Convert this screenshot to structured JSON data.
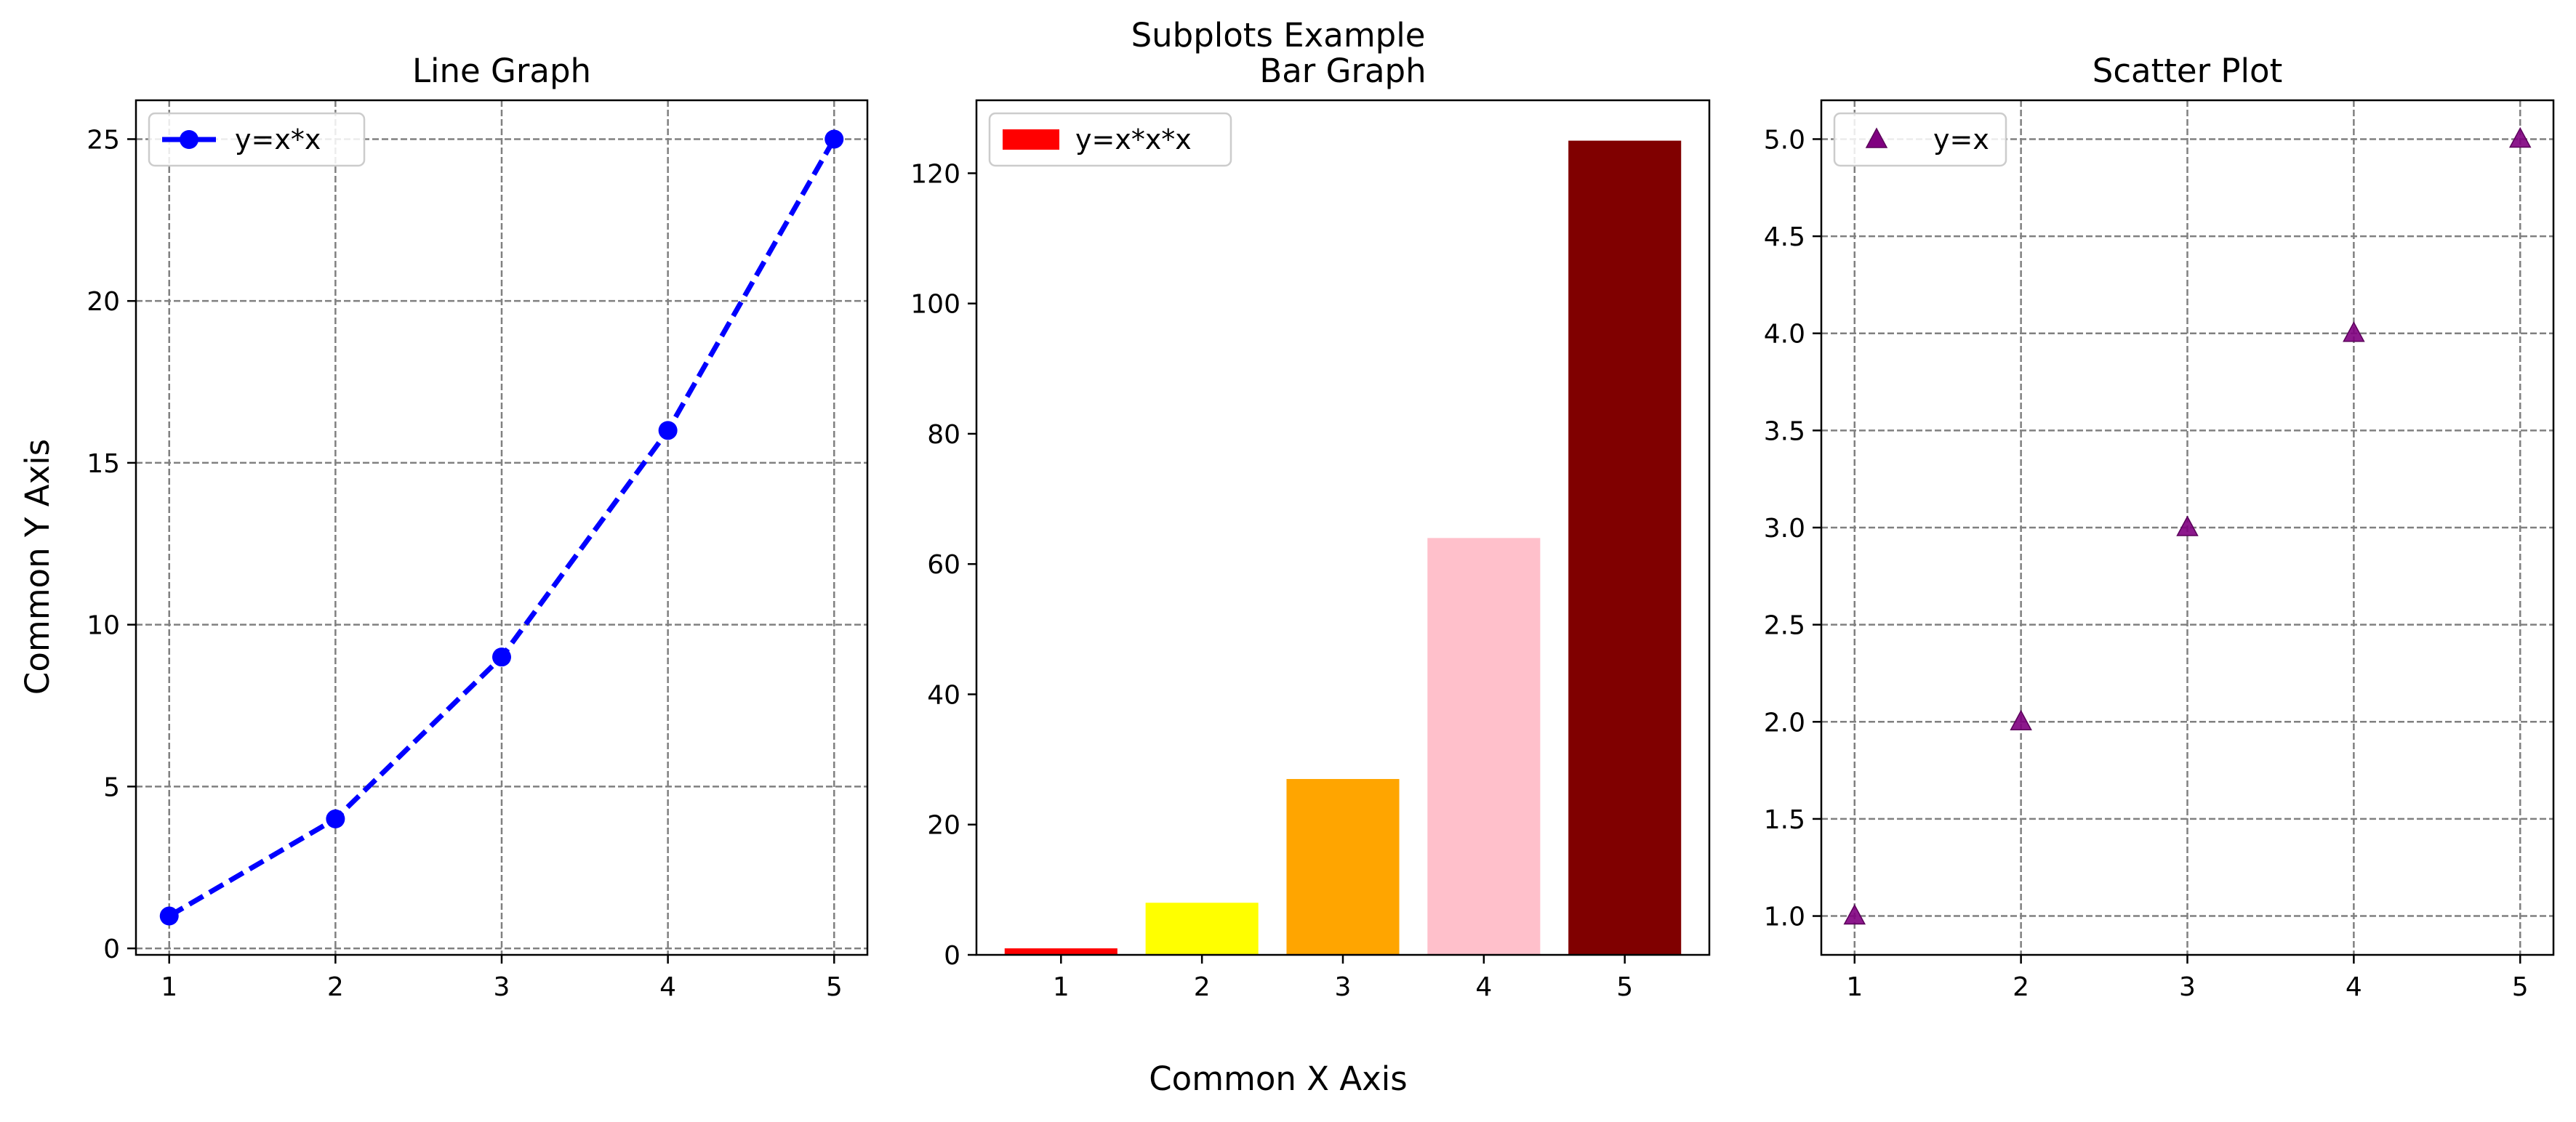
{
  "figure": {
    "suptitle": "Subplots Example",
    "common_xlabel": "Common X Axis",
    "common_ylabel": "Common Y Axis"
  },
  "chart_data": [
    {
      "type": "line",
      "title": "Line Graph",
      "x": [
        1,
        2,
        3,
        4,
        5
      ],
      "series": [
        {
          "name": "y=x*x",
          "values": [
            1,
            4,
            9,
            16,
            25
          ],
          "color": "#0000ff",
          "linestyle": "dashed",
          "marker": "circle"
        }
      ],
      "xlim": [
        0.8,
        5.2
      ],
      "ylim": [
        -0.2,
        26.2
      ],
      "xticks": [
        1,
        2,
        3,
        4,
        5
      ],
      "yticks": [
        0,
        5,
        10,
        15,
        20,
        25
      ],
      "ytick_labels": [
        "0",
        "5",
        "10",
        "15",
        "20",
        "25"
      ],
      "grid": true,
      "legend": "top-left"
    },
    {
      "type": "bar",
      "title": "Bar Graph",
      "categories": [
        "1",
        "2",
        "3",
        "4",
        "5"
      ],
      "series": [
        {
          "name": "y=x*x*x",
          "values": [
            1,
            8,
            27,
            64,
            125
          ]
        }
      ],
      "bar_colors": [
        "#ff0000",
        "#ffff00",
        "#ffa500",
        "#ffc0cb",
        "#800000"
      ],
      "legend_color": "#ff0000",
      "ylim": [
        0,
        131.2
      ],
      "yticks": [
        0,
        20,
        40,
        60,
        80,
        100,
        120
      ],
      "ytick_labels": [
        "0",
        "20",
        "40",
        "60",
        "80",
        "100",
        "120"
      ],
      "grid": false,
      "legend": "top-left"
    },
    {
      "type": "scatter",
      "title": "Scatter Plot",
      "x": [
        1,
        2,
        3,
        4,
        5
      ],
      "series": [
        {
          "name": "y=x",
          "values": [
            1,
            2,
            3,
            4,
            5
          ],
          "color": "#800080",
          "marker": "triangle"
        }
      ],
      "xlim": [
        0.8,
        5.2
      ],
      "ylim": [
        0.8,
        5.2
      ],
      "xticks": [
        1,
        2,
        3,
        4,
        5
      ],
      "yticks": [
        1.0,
        1.5,
        2.0,
        2.5,
        3.0,
        3.5,
        4.0,
        4.5,
        5.0
      ],
      "ytick_labels": [
        "1.0",
        "1.5",
        "2.0",
        "2.5",
        "3.0",
        "3.5",
        "4.0",
        "4.5",
        "5.0"
      ],
      "grid": true,
      "legend": "top-left"
    }
  ]
}
